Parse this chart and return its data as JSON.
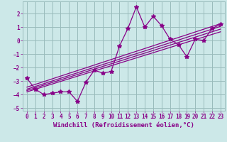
{
  "x_data": [
    0,
    1,
    2,
    3,
    4,
    5,
    6,
    7,
    8,
    9,
    10,
    11,
    12,
    13,
    14,
    15,
    16,
    17,
    18,
    19,
    20,
    21,
    22,
    23
  ],
  "y_scatter": [
    -2.8,
    -3.6,
    -4.0,
    -3.9,
    -3.8,
    -3.8,
    -4.5,
    -3.1,
    -2.2,
    -2.4,
    -2.3,
    -0.4,
    0.9,
    2.5,
    1.0,
    1.8,
    1.1,
    0.1,
    -0.3,
    -1.2,
    0.1,
    0.0,
    0.9,
    1.2
  ],
  "trend_lines": [
    {
      "x": [
        0,
        23
      ],
      "y": [
        -3.45,
        1.25
      ]
    },
    {
      "x": [
        0,
        23
      ],
      "y": [
        -3.6,
        1.05
      ]
    },
    {
      "x": [
        0,
        23
      ],
      "y": [
        -3.7,
        0.85
      ]
    },
    {
      "x": [
        0,
        23
      ],
      "y": [
        -3.8,
        0.65
      ]
    }
  ],
  "color": "#880088",
  "bg_color": "#cce8e8",
  "grid_color": "#99bbbb",
  "xlabel": "Windchill (Refroidissement éolien,°C)",
  "xlim": [
    -0.5,
    23.5
  ],
  "ylim": [
    -5.2,
    2.9
  ],
  "xticks": [
    0,
    1,
    2,
    3,
    4,
    5,
    6,
    7,
    8,
    9,
    10,
    11,
    12,
    13,
    14,
    15,
    16,
    17,
    18,
    19,
    20,
    21,
    22,
    23
  ],
  "yticks": [
    -5,
    -4,
    -3,
    -2,
    -1,
    0,
    1,
    2
  ],
  "marker": "*",
  "marker_size": 4,
  "line_width": 0.9,
  "tick_fontsize": 5.5,
  "xlabel_fontsize": 6.5
}
